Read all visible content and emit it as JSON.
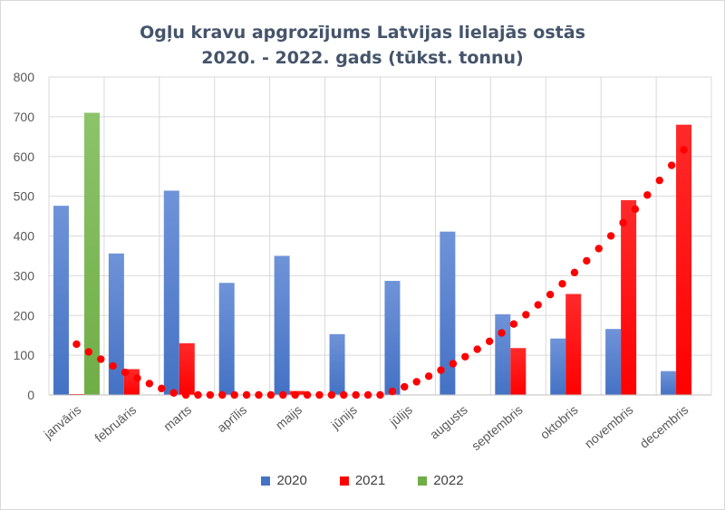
{
  "chart_data": {
    "type": "bar",
    "title": "Ogļu kravu apgrozījums Latvijas lielajās ostās",
    "subtitle": "2020. - 2022. gads (tūkst. tonnu)",
    "categories": [
      "janvāris",
      "februāris",
      "marts",
      "aprīlis",
      "maijs",
      "jūnijs",
      "jūlijs",
      "augusts",
      "septembris",
      "oktobris",
      "novembris",
      "decembris"
    ],
    "series": [
      {
        "name": "2020",
        "color": "#4472c4",
        "values": [
          476,
          356,
          514,
          282,
          350,
          153,
          287,
          411,
          203,
          142,
          166,
          60
        ]
      },
      {
        "name": "2021",
        "color": "#ff0000",
        "values": [
          2,
          65,
          130,
          0,
          10,
          0,
          0,
          0,
          118,
          254,
          490,
          680
        ]
      },
      {
        "name": "2022",
        "color": "#70ad47",
        "values": [
          710,
          null,
          null,
          null,
          null,
          null,
          null,
          null,
          null,
          null,
          null,
          null
        ]
      }
    ],
    "trendline": {
      "series": "2021",
      "style": "dotted",
      "color": "#ff0000"
    },
    "ylim": [
      0,
      800
    ],
    "yticks": [
      0,
      100,
      200,
      300,
      400,
      500,
      600,
      700,
      800
    ],
    "grid": true,
    "legend": "bottom"
  }
}
